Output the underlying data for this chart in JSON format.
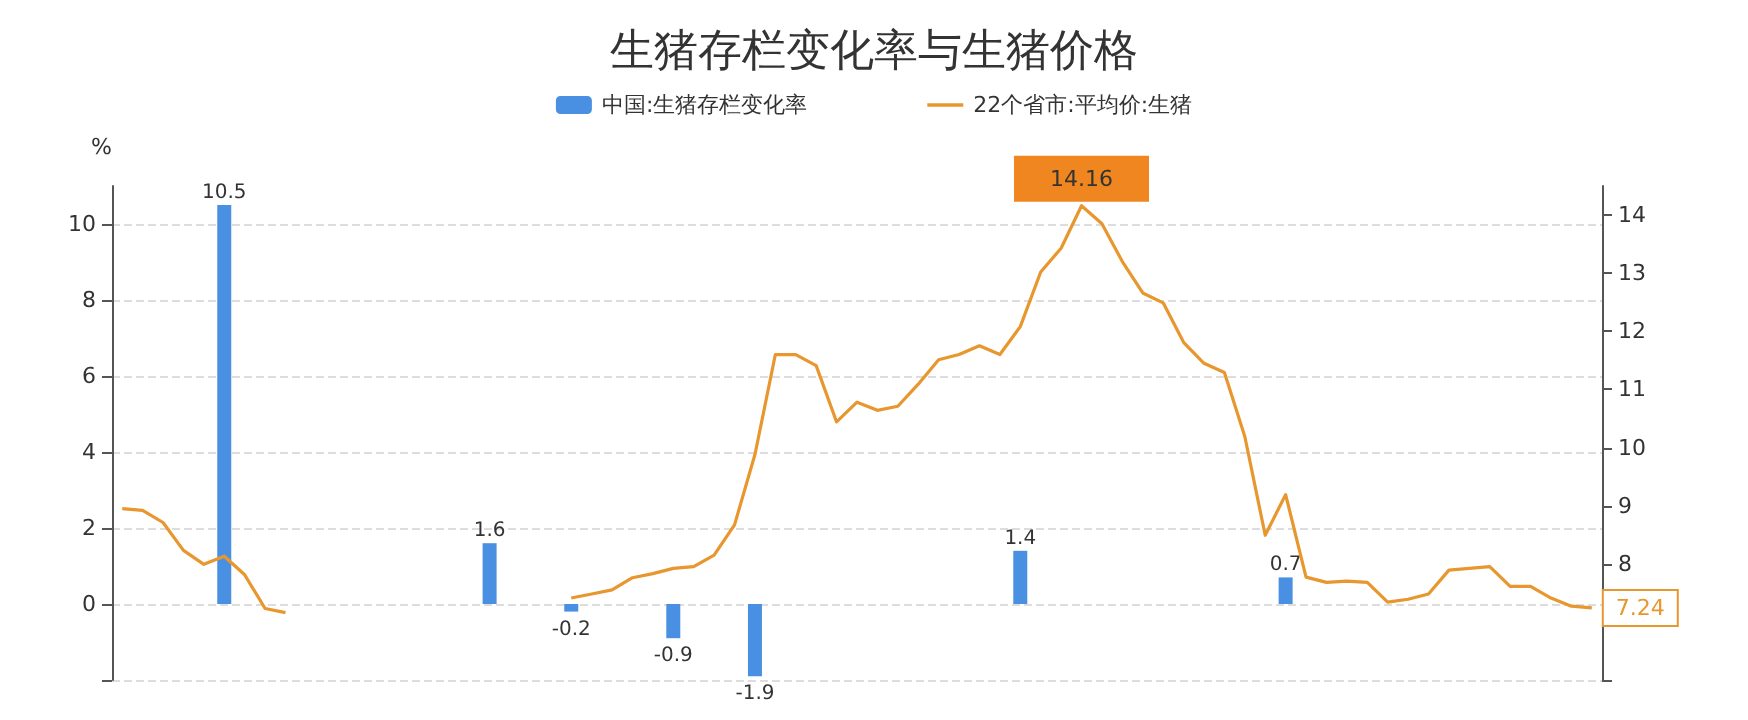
{
  "chart_data": {
    "type": "bar",
    "title": "生猪存栏变化率与生猪价格",
    "ylabel": "%",
    "categories": [
      null,
      null,
      null,
      null,
      null,
      null,
      null,
      null,
      null,
      null,
      null,
      null,
      null,
      null,
      null,
      null,
      null,
      null,
      null,
      null,
      null,
      null,
      null,
      null,
      null,
      null,
      null,
      null,
      null,
      null,
      null,
      null,
      null,
      null,
      null,
      null,
      null,
      null,
      null,
      null,
      null,
      null,
      null,
      null,
      null,
      null,
      null,
      null,
      null,
      null,
      null,
      null,
      null,
      null,
      null,
      null,
      null,
      null,
      null,
      null,
      null,
      null,
      null,
      null,
      null,
      null,
      null,
      null,
      null,
      null,
      null,
      null,
      null
    ],
    "series": [
      {
        "name": "中国:生猪存栏变化率",
        "color": "#4a90e2",
        "values": [
          null,
          null,
          null,
          null,
          null,
          10.5,
          null,
          null,
          null,
          null,
          null,
          null,
          null,
          null,
          null,
          null,
          null,
          null,
          1.6,
          null,
          null,
          null,
          -0.2,
          null,
          null,
          null,
          null,
          -0.9,
          null,
          null,
          null,
          -1.9,
          null,
          null,
          null,
          null,
          null,
          null,
          null,
          null,
          null,
          null,
          null,
          null,
          1.4,
          null,
          null,
          null,
          null,
          null,
          null,
          null,
          null,
          null,
          null,
          null,
          null,
          0.7,
          null,
          null,
          null,
          null,
          null,
          null,
          null,
          null,
          null,
          null,
          null,
          null,
          null,
          null,
          null
        ],
        "value_labels": [
          null,
          null,
          null,
          null,
          null,
          "10.5",
          null,
          null,
          null,
          null,
          null,
          null,
          null,
          null,
          null,
          null,
          null,
          null,
          "1.6",
          null,
          null,
          null,
          "-0.2",
          null,
          null,
          null,
          null,
          "-0.9",
          null,
          null,
          null,
          "-1.9",
          null,
          null,
          null,
          null,
          null,
          null,
          null,
          null,
          null,
          null,
          null,
          null,
          "1.4",
          null,
          null,
          null,
          null,
          null,
          null,
          null,
          null,
          null,
          null,
          null,
          null,
          "0.7",
          null,
          null,
          null,
          null,
          null,
          null,
          null,
          null,
          null,
          null,
          null,
          null,
          null,
          null,
          null
        ]
      },
      {
        "name": "22个省市:平均价:生猪",
        "type": "line",
        "axis": "y2",
        "color": "#e8962e",
        "values": [
          8.95,
          8.92,
          8.71,
          8.23,
          7.99,
          8.13,
          7.81,
          7.23,
          7.16,
          null,
          null,
          null,
          null,
          null,
          null,
          null,
          null,
          null,
          null,
          null,
          null,
          null,
          null,
          null,
          null,
          null,
          null,
          null,
          null,
          null,
          null,
          null,
          null,
          null,
          null,
          null,
          null,
          null,
          null,
          null,
          null,
          null,
          null,
          null,
          null,
          null,
          null,
          null,
          null,
          null,
          null,
          null,
          null,
          null,
          null,
          null,
          null,
          null,
          null,
          null,
          null,
          null,
          null,
          null,
          null,
          null,
          null,
          null,
          null,
          null,
          null,
          null,
          null
        ],
        "value_labels": [
          null,
          null,
          null,
          null,
          null,
          null,
          null,
          null,
          null,
          null,
          null,
          null,
          null,
          null,
          null,
          null,
          null,
          null,
          null,
          null,
          null,
          null,
          null,
          null,
          null,
          null,
          null,
          null,
          null,
          null,
          null,
          null,
          null,
          null,
          null,
          null,
          null,
          null,
          null,
          null,
          null,
          null,
          null,
          null,
          null,
          null,
          null,
          null,
          null,
          null,
          null,
          null,
          null,
          null,
          null,
          null,
          null,
          null,
          null,
          null,
          null,
          null,
          null,
          null,
          null,
          null,
          null,
          null,
          null,
          null,
          null,
          null,
          null
        ]
      },
      {
        "type": "line",
        "axis": "y2",
        "color": "#e8962e",
        "values": [
          null,
          null,
          null,
          null,
          null,
          null,
          null,
          null,
          null,
          null,
          null,
          null,
          null,
          null,
          null,
          null,
          null,
          null,
          null,
          null,
          null,
          null,
          7.41,
          7.48,
          7.55,
          7.76,
          7.83,
          7.92,
          7.95,
          8.15,
          8.67,
          9.88,
          11.6,
          11.6,
          11.41,
          10.44,
          10.78,
          10.64,
          10.71,
          11.09,
          11.51,
          11.6,
          11.75,
          11.6,
          12.08,
          13.02,
          13.43,
          14.16,
          13.85,
          13.2,
          12.66,
          12.49,
          11.81,
          11.45,
          11.29,
          10.19,
          8.49,
          9.19,
          7.77,
          7.68,
          7.7,
          7.68,
          7.34,
          7.39,
          7.48,
          7.89,
          7.92,
          7.95,
          7.61,
          7.61,
          7.41,
          7.27,
          7.24
        ],
        "value_labels": [
          null,
          null,
          null,
          null,
          null,
          null,
          null,
          null,
          null,
          null,
          null,
          null,
          null,
          null,
          null,
          null,
          null,
          null,
          null,
          null,
          null,
          null,
          null,
          null,
          null,
          null,
          null,
          null,
          null,
          null,
          null,
          null,
          null,
          null,
          null,
          null,
          null,
          null,
          null,
          null,
          null,
          null,
          null,
          null,
          null,
          null,
          null,
          "14.16",
          null,
          null,
          null,
          null,
          null,
          null,
          null,
          null,
          null,
          null,
          null,
          null,
          null,
          null,
          null,
          null,
          null,
          null,
          null,
          null,
          null,
          null,
          null,
          null,
          "7.24"
        ]
      }
    ],
    "ylim": [
      -2,
      11
    ],
    "yticks": [
      {
        "value": -2,
        "label": null
      },
      0,
      2,
      4,
      6,
      8,
      10
    ],
    "y2lim": [
      6,
      14.5
    ],
    "y2ticks": [
      {
        "value": 6,
        "label": null
      },
      {
        "value": 7,
        "label": null
      },
      8,
      9,
      10,
      11,
      12,
      13,
      14
    ],
    "grid": "y",
    "legend": "top",
    "marker": "none"
  }
}
